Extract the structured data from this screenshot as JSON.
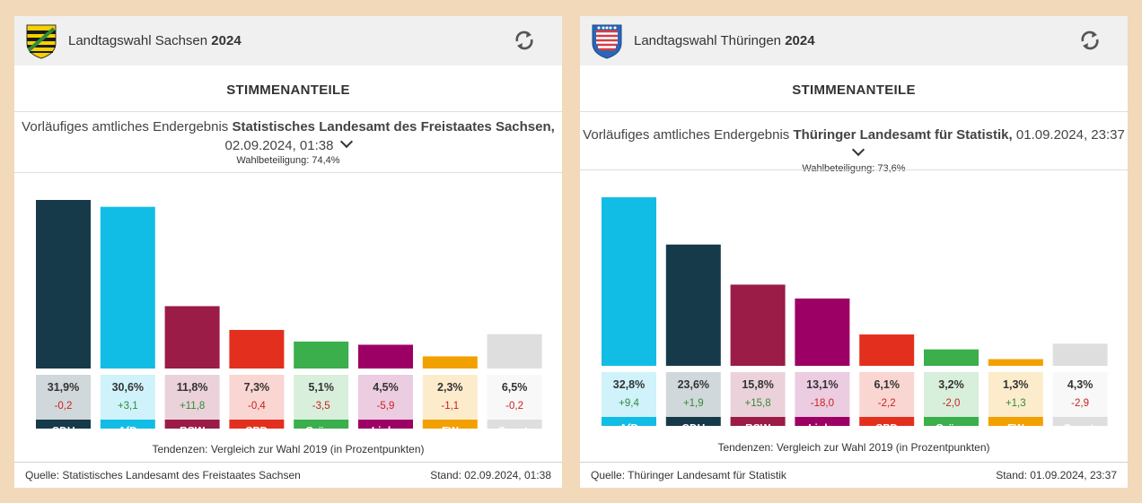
{
  "panels": [
    {
      "header": {
        "title": "Landtagswahl Sachsen",
        "year": "2024"
      },
      "section_title": "STIMMENANTEILE",
      "result_prefix": "Vorläufiges amtliches Endergebnis",
      "result_source": "Statistisches Landesamt des Freistaates Sachsen,",
      "result_time": "02.09.2024, 01:38",
      "turnout": "Wahlbeteiligung: 74,4%",
      "tendency": "Tendenzen: Vergleich zur Wahl 2019 (in Prozentpunkten)",
      "footer_source": "Quelle: Statistisches Landesamt des Freistaates Sachsen",
      "footer_stand": "Stand: 02.09.2024, 01:38",
      "chart_data": {
        "type": "bar",
        "ylim": [
          0,
          31.9
        ],
        "categories": [
          "CDU",
          "AfD",
          "BSW",
          "SPD",
          "Grüne",
          "Linke",
          "FW",
          "Sonst."
        ],
        "values": [
          31.9,
          30.6,
          11.8,
          7.3,
          5.1,
          4.5,
          2.3,
          6.5
        ],
        "value_labels": [
          "31,9%",
          "30,6%",
          "11,8%",
          "7,3%",
          "5,1%",
          "4,5%",
          "2,3%",
          "6,5%"
        ],
        "changes": [
          -0.2,
          3.1,
          11.8,
          -0.4,
          -3.5,
          -5.9,
          -1.1,
          -0.2
        ],
        "change_labels": [
          "-0,2",
          "+3,1",
          "+11,8",
          "-0,4",
          "-3,5",
          "-5,9",
          "-1,1",
          "-0,2"
        ],
        "colors": [
          "#173a4b",
          "#12bde5",
          "#9b1c46",
          "#e3301e",
          "#3aaf4c",
          "#9d0064",
          "#f2a000",
          "#dedede"
        ]
      }
    },
    {
      "header": {
        "title": "Landtagswahl Thüringen",
        "year": "2024"
      },
      "section_title": "STIMMENANTEILE",
      "result_prefix": "Vorläufiges amtliches Endergebnis",
      "result_source": "Thüringer Landesamt für Statistik,",
      "result_time": "01.09.2024, 23:37",
      "turnout": "Wahlbeteiligung: 73,6%",
      "tendency": "Tendenzen: Vergleich zur Wahl 2019 (in Prozentpunkten)",
      "footer_source": "Quelle: Thüringer Landesamt für Statistik",
      "footer_stand": "Stand: 01.09.2024, 23:37",
      "chart_data": {
        "type": "bar",
        "ylim": [
          0,
          32.8
        ],
        "categories": [
          "AfD",
          "CDU",
          "BSW",
          "Linke",
          "SPD",
          "Grüne",
          "FW",
          "Sonst."
        ],
        "values": [
          32.8,
          23.6,
          15.8,
          13.1,
          6.1,
          3.2,
          1.3,
          4.3
        ],
        "value_labels": [
          "32,8%",
          "23,6%",
          "15,8%",
          "13,1%",
          "6,1%",
          "3,2%",
          "1,3%",
          "4,3%"
        ],
        "changes": [
          9.4,
          1.9,
          15.8,
          -18.0,
          -2.2,
          -2.0,
          1.3,
          -2.9
        ],
        "change_labels": [
          "+9,4",
          "+1,9",
          "+15,8",
          "-18,0",
          "-2,2",
          "-2,0",
          "+1,3",
          "-2,9"
        ],
        "colors": [
          "#12bde5",
          "#173a4b",
          "#9b1c46",
          "#9d0064",
          "#e3301e",
          "#3aaf4c",
          "#f2a000",
          "#dedede"
        ]
      }
    }
  ],
  "style": {
    "positive_color": "#2e8b3a",
    "negative_color": "#cc1f1f"
  }
}
